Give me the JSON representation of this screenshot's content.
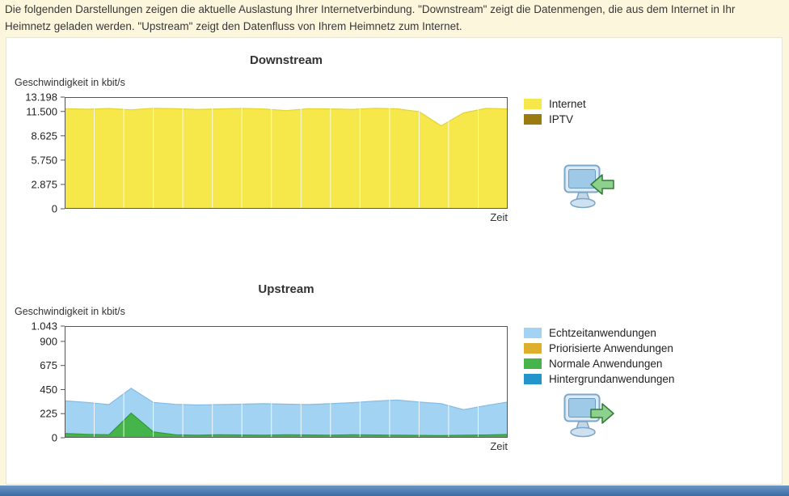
{
  "intro": {
    "text": "Die folgenden Darstellungen zeigen die aktuelle Auslastung Ihrer Internetverbindung. \"Downstream\" zeigt die Datenmengen, die aus dem Internet in Ihr Heimnetz geladen werden. \"Upstream\" zeigt den Datenfluss von Ihrem Heimnetz zum Internet."
  },
  "icons": {
    "downstream": "monitor-download-icon",
    "upstream": "monitor-upload-icon"
  },
  "colors": {
    "background": "#fcf6dd",
    "panel": "#ffffff",
    "footer_bar": "#4a77ab",
    "plot_border": "#555555",
    "gridline": "rgba(255,255,255,0.85)"
  },
  "chart_data": [
    {
      "type": "area",
      "title": "Downstream",
      "ylabel": "Geschwindigkeit in kbit/s",
      "xlabel": "Zeit",
      "ylim": [
        0,
        13198
      ],
      "grid": "vertical",
      "x_intervals": 15,
      "legend_position": "right",
      "yticks": [
        {
          "label": "13.198",
          "value": 13198
        },
        {
          "label": "11.500",
          "value": 11500
        },
        {
          "label": "8.625",
          "value": 8625
        },
        {
          "label": "5.750",
          "value": 5750
        },
        {
          "label": "2.875",
          "value": 2875
        },
        {
          "label": "0",
          "value": 0
        }
      ],
      "stacked": true,
      "series": [
        {
          "name": "Internet",
          "color": "#f6e74b",
          "edge": "#e3d337",
          "values": [
            11820,
            11760,
            11850,
            11700,
            11880,
            11820,
            11740,
            11800,
            11860,
            11790,
            11600,
            11830,
            11800,
            11740,
            11880,
            11810,
            11480,
            9800,
            11320,
            11860,
            11800
          ]
        },
        {
          "name": "IPTV",
          "color": "#9a7b10"
        }
      ]
    },
    {
      "type": "area",
      "title": "Upstream",
      "ylabel": "Geschwindigkeit in kbit/s",
      "xlabel": "Zeit",
      "ylim": [
        0,
        1043
      ],
      "grid": "vertical",
      "x_intervals": 15,
      "legend_position": "right",
      "yticks": [
        {
          "label": "1.043",
          "value": 1043
        },
        {
          "label": "900",
          "value": 900
        },
        {
          "label": "675",
          "value": 675
        },
        {
          "label": "450",
          "value": 450
        },
        {
          "label": "225",
          "value": 225
        },
        {
          "label": "0",
          "value": 0
        }
      ],
      "stacked": true,
      "series": [
        {
          "name": "Echtzeitanwendungen",
          "color": "#a3d3f3",
          "edge": "#85bce2",
          "values": [
            305,
            298,
            282,
            232,
            275,
            284,
            282,
            282,
            288,
            294,
            286,
            284,
            294,
            300,
            316,
            328,
            312,
            298,
            238,
            274,
            304
          ]
        },
        {
          "name": "Priorisierte Anwendungen",
          "color": "#ddaf2c"
        },
        {
          "name": "Normale Anwendungen",
          "color": "#45b44a",
          "edge": "#2f9a37",
          "values": [
            40,
            32,
            28,
            230,
            55,
            28,
            24,
            28,
            26,
            24,
            28,
            26,
            24,
            28,
            26,
            24,
            22,
            20,
            24,
            26,
            30
          ]
        },
        {
          "name": "Hintergrundanwendungen",
          "color": "#2295cb"
        }
      ]
    }
  ]
}
